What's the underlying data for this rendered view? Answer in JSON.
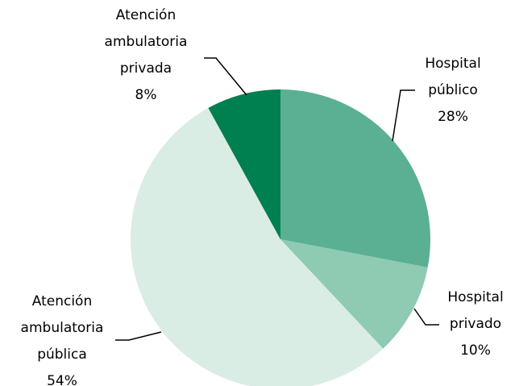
{
  "chart_data": {
    "type": "pie",
    "categories": [
      "Hospital público",
      "Hospital privado",
      "Atención ambulatoria pública",
      "Atención ambulatoria privada"
    ],
    "values": [
      28,
      10,
      54,
      8
    ],
    "value_labels": [
      "28%",
      "10%",
      "54%",
      "8%"
    ],
    "colors": [
      "#5bb094",
      "#8fcab3",
      "#d9ede5",
      "#008050"
    ]
  }
}
